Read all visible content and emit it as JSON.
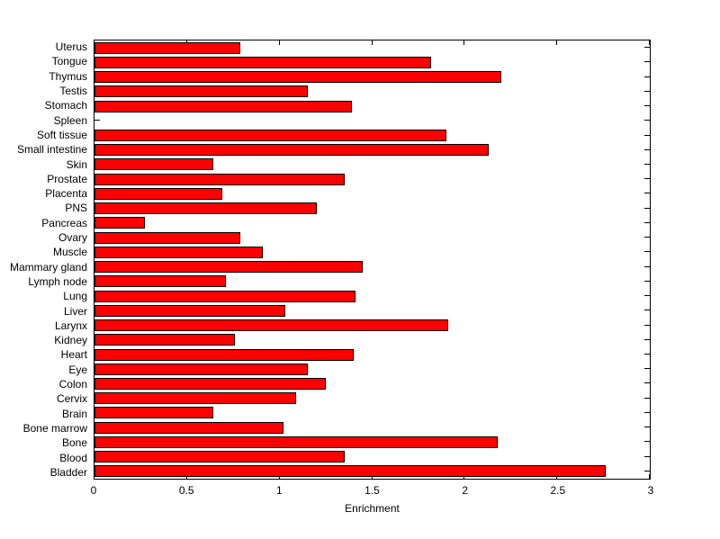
{
  "chart_data": {
    "type": "bar",
    "orientation": "horizontal",
    "title": "",
    "xlabel": "Enrichment",
    "ylabel": "",
    "xlim": [
      0,
      3
    ],
    "xticks": [
      0,
      0.5,
      1,
      1.5,
      2,
      2.5,
      3
    ],
    "xtick_labels": [
      "0",
      "0.5",
      "1",
      "1.5",
      "2",
      "2.5",
      "3"
    ],
    "grid": false,
    "legend": "none",
    "bar_color": "#ff0000",
    "bar_edge_color": "#000000",
    "background_color": "#ffffff",
    "categories": [
      "Uterus",
      "Tongue",
      "Thymus",
      "Testis",
      "Stomach",
      "Spleen",
      "Soft tissue",
      "Small intestine",
      "Skin",
      "Prostate",
      "Placenta",
      "PNS",
      "Pancreas",
      "Ovary",
      "Muscle",
      "Mammary gland",
      "Lymph node",
      "Lung",
      "Liver",
      "Larynx",
      "Kidney",
      "Heart",
      "Eye",
      "Colon",
      "Cervix",
      "Brain",
      "Bone marrow",
      "Bone",
      "Blood",
      "Bladder"
    ],
    "values": [
      0.79,
      1.82,
      2.2,
      1.15,
      1.39,
      0,
      1.9,
      2.13,
      0.64,
      1.35,
      0.69,
      1.2,
      0.27,
      0.79,
      0.91,
      1.45,
      0.71,
      1.41,
      1.03,
      1.91,
      0.76,
      1.4,
      1.15,
      1.25,
      1.09,
      0.64,
      1.02,
      2.18,
      1.35,
      2.76
    ]
  }
}
